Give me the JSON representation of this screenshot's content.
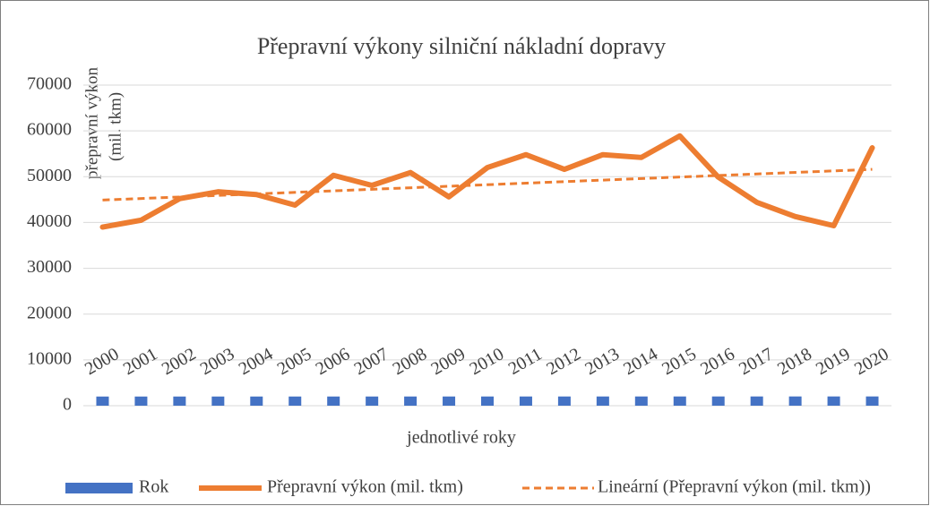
{
  "chart_data": {
    "type": "line",
    "title": "Přepravní výkony silniční nákladní dopravy",
    "ylabel": [
      "přepravní výkon",
      "(mil. tkm)"
    ],
    "xlabel": "jednotlivé roky",
    "categories": [
      "2000",
      "2001",
      "2002",
      "2003",
      "2004",
      "2005",
      "2006",
      "2007",
      "2008",
      "2009",
      "2010",
      "2011",
      "2012",
      "2013",
      "2014",
      "2015",
      "2016",
      "2017",
      "2018",
      "2019",
      "2020"
    ],
    "series": [
      {
        "name": "Rok",
        "type": "bar",
        "color": "#4472c4",
        "values": [
          2000,
          2001,
          2002,
          2003,
          2004,
          2005,
          2006,
          2007,
          2008,
          2009,
          2010,
          2011,
          2012,
          2013,
          2014,
          2015,
          2016,
          2017,
          2018,
          2019,
          2020
        ]
      },
      {
        "name": "Přepravní výkon (mil. tkm)",
        "type": "line",
        "color": "#ed7d31",
        "values": [
          39000,
          40500,
          45200,
          46700,
          46100,
          43800,
          50300,
          48100,
          50900,
          45600,
          52000,
          54800,
          51600,
          54800,
          54200,
          58900,
          49900,
          44400,
          41300,
          39300,
          56300
        ]
      }
    ],
    "trendline": {
      "name": "Lineární (Přepravní výkon (mil. tkm))",
      "color": "#ed7d31",
      "values": [
        44900,
        51600
      ]
    },
    "ylim": [
      0,
      70000
    ],
    "yticks": [
      0,
      10000,
      20000,
      30000,
      40000,
      50000,
      60000,
      70000
    ],
    "grid": true
  }
}
